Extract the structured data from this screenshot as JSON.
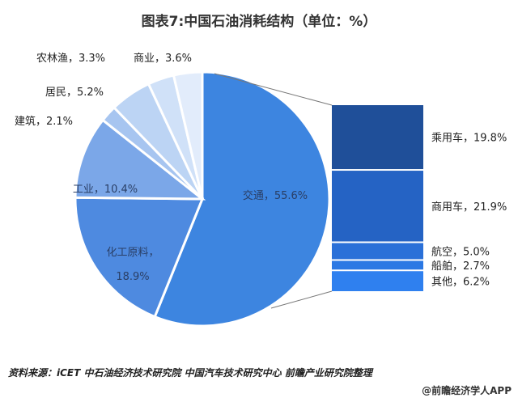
{
  "chart_data": {
    "type": "pie",
    "title": "图表7:中国石油消耗结构（单位：%）",
    "unit": "%",
    "slices": [
      {
        "label": "交通",
        "value": 55.6,
        "color": "#3d85e0"
      },
      {
        "label": "化工原料",
        "value": 18.9,
        "color": "#4e8ae0"
      },
      {
        "label": "工业",
        "value": 10.4,
        "color": "#7ba7e8"
      },
      {
        "label": "建筑",
        "value": 2.1,
        "color": "#a7c5f0"
      },
      {
        "label": "居民",
        "value": 5.2,
        "color": "#bcd4f4"
      },
      {
        "label": "农林渔",
        "value": 3.3,
        "color": "#d0e1f8"
      },
      {
        "label": "商业",
        "value": 3.6,
        "color": "#e2ecfb"
      }
    ],
    "breakdown": {
      "of": "交通",
      "segments": [
        {
          "label": "乘用车",
          "value": 19.8,
          "color": "#1f4f99"
        },
        {
          "label": "商用车",
          "value": 21.9,
          "color": "#2563c4"
        },
        {
          "label": "航空",
          "value": 5.0,
          "color": "#2a70d8"
        },
        {
          "label": "船舶",
          "value": 2.7,
          "color": "#2b78e4"
        },
        {
          "label": "其他",
          "value": 6.2,
          "color": "#2f80ef"
        }
      ]
    }
  },
  "footer": {
    "source": "资料来源：iCET 中石油经济技术研究院 中国汽车技术研究中心  前瞻产业研究院整理",
    "credit": "@前瞻经济学人APP"
  }
}
